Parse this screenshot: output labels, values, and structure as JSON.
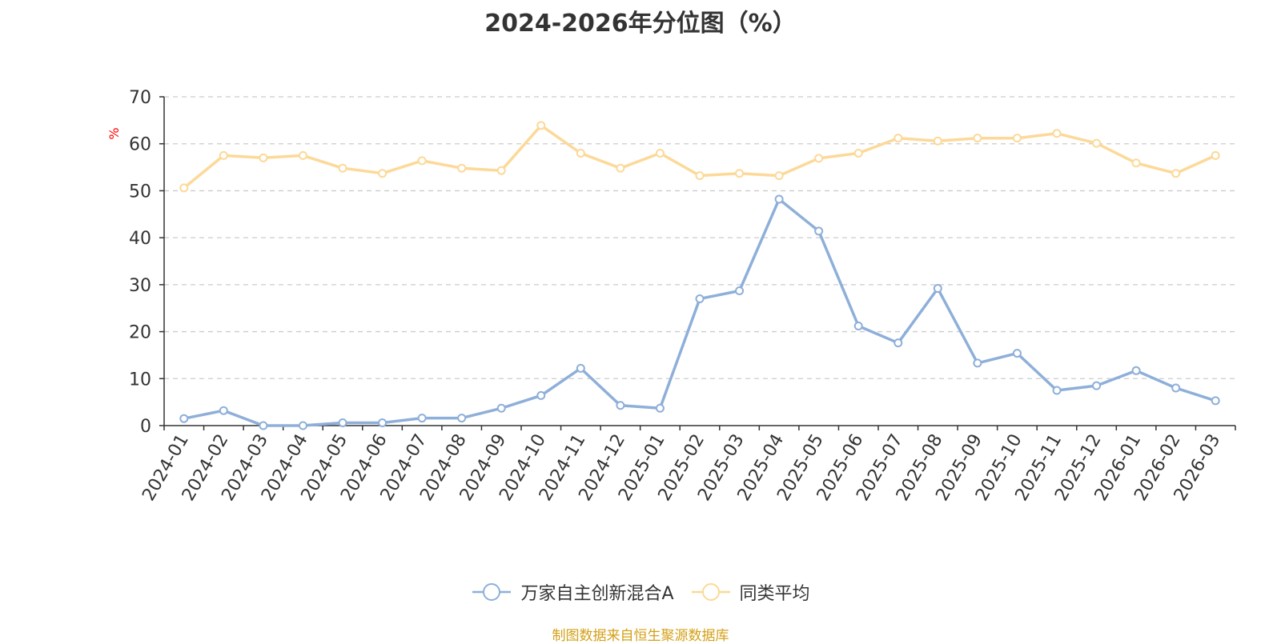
{
  "chart_data": {
    "type": "line",
    "title": "2024-2026年分位图（%）",
    "ylabel": "%",
    "xlabel": "",
    "ylim": [
      0,
      70
    ],
    "yticks": [
      0,
      10,
      20,
      30,
      40,
      50,
      60,
      70
    ],
    "grid": true,
    "legend_position": "bottom",
    "categories": [
      "2024-01",
      "2024-02",
      "2024-03",
      "2024-04",
      "2024-05",
      "2024-06",
      "2024-07",
      "2024-08",
      "2024-09",
      "2024-10",
      "2024-11",
      "2024-12",
      "2025-01",
      "2025-02",
      "2025-03",
      "2025-04",
      "2025-05",
      "2025-06",
      "2025-07",
      "2025-08",
      "2025-09",
      "2025-10",
      "2025-11",
      "2025-12",
      "2026-01",
      "2026-02",
      "2026-03"
    ],
    "series": [
      {
        "name": "万家自主创新混合A",
        "color": "#8eafd9",
        "values": [
          1.5,
          3.2,
          0.0,
          0.0,
          0.6,
          0.6,
          1.6,
          1.6,
          3.7,
          6.4,
          12.2,
          4.3,
          3.7,
          27.0,
          28.7,
          48.2,
          41.4,
          21.2,
          17.6,
          29.2,
          13.3,
          15.4,
          7.5,
          8.5,
          11.7,
          8.0,
          5.3
        ]
      },
      {
        "name": "同类平均",
        "color": "#fcd998",
        "values": [
          50.6,
          57.5,
          57.0,
          57.5,
          54.8,
          53.7,
          56.4,
          54.8,
          54.3,
          63.9,
          58.0,
          54.8,
          58.0,
          53.2,
          53.7,
          53.2,
          56.9,
          58.0,
          61.2,
          60.6,
          61.2,
          61.2,
          62.2,
          60.1,
          55.9,
          53.7,
          57.5
        ]
      }
    ]
  },
  "source_note": "制图数据来自恒生聚源数据库"
}
